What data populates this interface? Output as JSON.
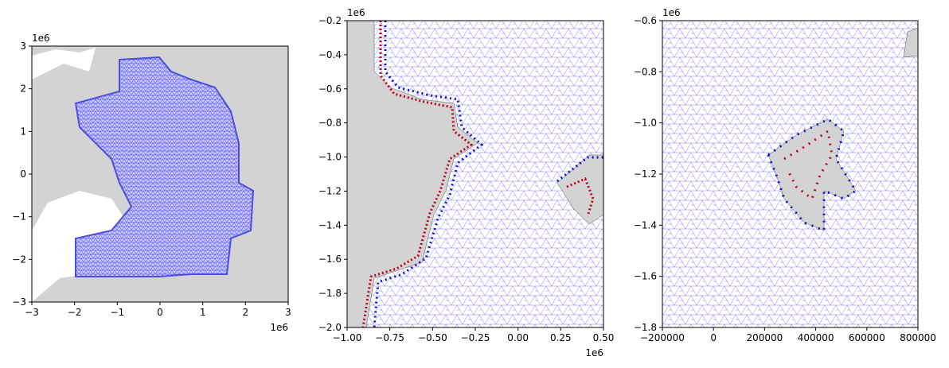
{
  "chart_data": [
    {
      "type": "map",
      "xlim": [
        -3,
        3
      ],
      "ylim": [
        -3,
        3
      ],
      "xticks": [
        {
          "value": -3,
          "label": "−3"
        },
        {
          "value": -2,
          "label": "−2"
        },
        {
          "value": -1,
          "label": "−1"
        },
        0,
        1,
        2,
        3
      ],
      "yticks": [
        {
          "value": -3,
          "label": "−3"
        },
        {
          "value": -2,
          "label": "−2"
        },
        {
          "value": -1,
          "label": "−1"
        },
        0,
        1,
        2,
        3
      ],
      "x_offset": "1e6",
      "y_offset": "1e6"
    },
    {
      "type": "map",
      "xlim": [
        -1,
        0.5
      ],
      "ylim": [
        -2,
        -0.2
      ],
      "xticks": [
        {
          "value": -1,
          "label": "−1.00"
        },
        {
          "value": -0.75,
          "label": "−0.75"
        },
        {
          "value": -0.5,
          "label": "−0.50"
        },
        {
          "value": -0.25,
          "label": "−0.25"
        },
        {
          "value": 0,
          "label": "0.00"
        },
        {
          "value": 0.25,
          "label": "0.25"
        },
        {
          "value": 0.5,
          "label": "0.50"
        }
      ],
      "yticks": [
        {
          "value": -2,
          "label": "−2.0"
        },
        {
          "value": -1.8,
          "label": "−1.8"
        },
        {
          "value": -1.6,
          "label": "−1.6"
        },
        {
          "value": -1.4,
          "label": "−1.4"
        },
        {
          "value": -1.2,
          "label": "−1.2"
        },
        {
          "value": -1,
          "label": "−1.0"
        },
        {
          "value": -0.8,
          "label": "−0.8"
        },
        {
          "value": -0.6,
          "label": "−0.6"
        },
        {
          "value": -0.4,
          "label": "−0.4"
        },
        {
          "value": -0.2,
          "label": "−0.2"
        }
      ],
      "x_offset": "1e6",
      "y_offset": "1e6"
    },
    {
      "type": "map",
      "xlim": [
        -200000,
        800000
      ],
      "ylim": [
        -1.8,
        -0.6
      ],
      "xticks": [
        {
          "value": -200000,
          "label": "−200000"
        },
        0,
        200000,
        400000,
        600000,
        800000
      ],
      "yticks": [
        {
          "value": -1.8,
          "label": "−1.8"
        },
        {
          "value": -1.6,
          "label": "−1.6"
        },
        {
          "value": -1.4,
          "label": "−1.4"
        },
        {
          "value": -1.2,
          "label": "−1.2"
        },
        {
          "value": -1,
          "label": "−1.0"
        },
        {
          "value": -0.8,
          "label": "−0.8"
        },
        {
          "value": -0.6,
          "label": "−0.6"
        }
      ],
      "y_offset": "1e6"
    }
  ]
}
